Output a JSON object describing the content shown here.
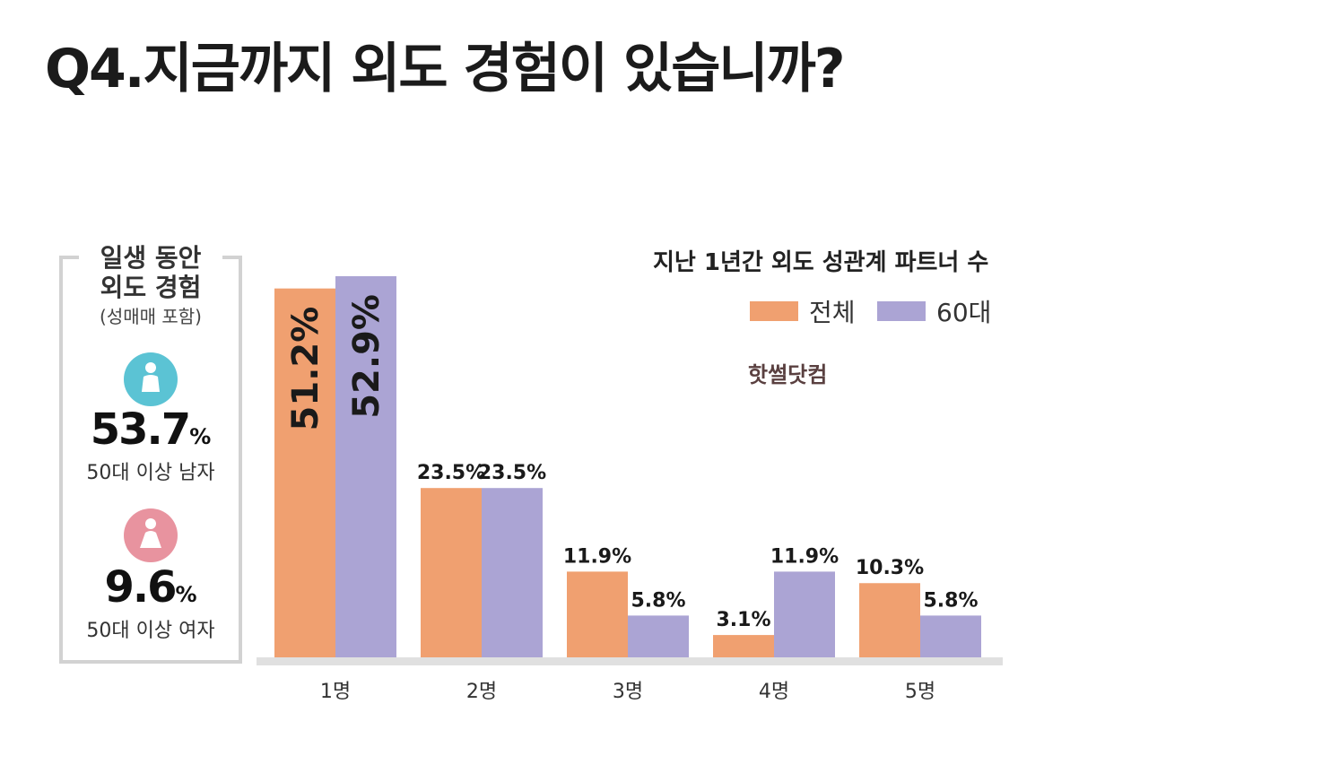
{
  "title": "Q4.지금까지 외도 경험이 있습니까?",
  "side_panel": {
    "heading_line1": "일생 동안",
    "heading_line2": "외도 경험",
    "sub": "(성매매 포함)",
    "male": {
      "value": "53.7",
      "unit": "%",
      "caption": "50대 이상 남자",
      "icon": "male-person-icon",
      "color": "#5bc3d4"
    },
    "female": {
      "value": "9.6",
      "unit": "%",
      "caption": "50대 이상 여자",
      "icon": "female-person-icon",
      "color": "#e8939f"
    }
  },
  "watermark": "핫썰닷컴",
  "chart_data": {
    "type": "bar",
    "title": "지난 1년간 외도 성관계 파트너 수",
    "categories": [
      "1명",
      "2명",
      "3명",
      "4명",
      "5명"
    ],
    "series": [
      {
        "name": "전체",
        "color": "#f0a070",
        "values": [
          51.2,
          23.5,
          11.9,
          3.1,
          10.3
        ],
        "labels": [
          "51.2%",
          "23.5%",
          "11.9%",
          "3.1%",
          "10.3%"
        ]
      },
      {
        "name": "60대",
        "color": "#aba4d4",
        "values": [
          52.9,
          23.5,
          5.8,
          11.9,
          5.8
        ],
        "labels": [
          "52.9%",
          "23.5%",
          "5.8%",
          "11.9%",
          "5.8%"
        ]
      }
    ],
    "grid": false,
    "legend": "top-right"
  }
}
